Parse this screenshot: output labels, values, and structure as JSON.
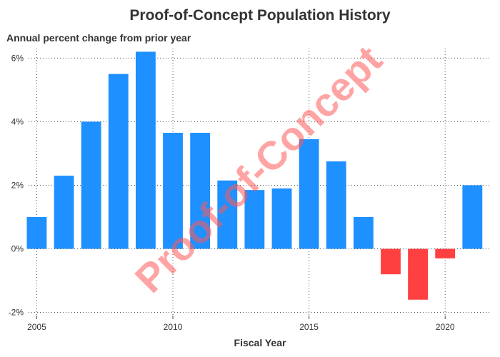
{
  "chart_data": {
    "type": "bar",
    "title": "Proof-of-Concept Population History",
    "ylabel": "Annual percent change from prior year",
    "xlabel": "Fiscal Year",
    "watermark": "Proof-of-Concept",
    "x": [
      2005,
      2006,
      2007,
      2008,
      2009,
      2010,
      2011,
      2012,
      2013,
      2014,
      2015,
      2016,
      2017,
      2018,
      2019,
      2020,
      2021
    ],
    "values": [
      1.0,
      2.3,
      4.0,
      5.5,
      6.2,
      3.65,
      3.65,
      2.15,
      1.85,
      1.9,
      3.45,
      2.75,
      1.0,
      -0.8,
      -1.6,
      -0.3,
      2.0
    ],
    "xlim": [
      2004.7,
      2021.7
    ],
    "ylim": [
      -2.1,
      6.3
    ],
    "x_ticks": [
      2005,
      2010,
      2015,
      2020
    ],
    "x_tick_labels": [
      "2005",
      "2010",
      "2015",
      "2020"
    ],
    "y_ticks": [
      -2,
      0,
      2,
      4,
      6
    ],
    "y_tick_labels": [
      "-2%",
      "0%",
      "2%",
      "4%",
      "6%"
    ],
    "grid": true,
    "colors": {
      "positive": "#1e90ff",
      "negative": "#ff4040",
      "watermark": "#ff5a5a"
    }
  }
}
